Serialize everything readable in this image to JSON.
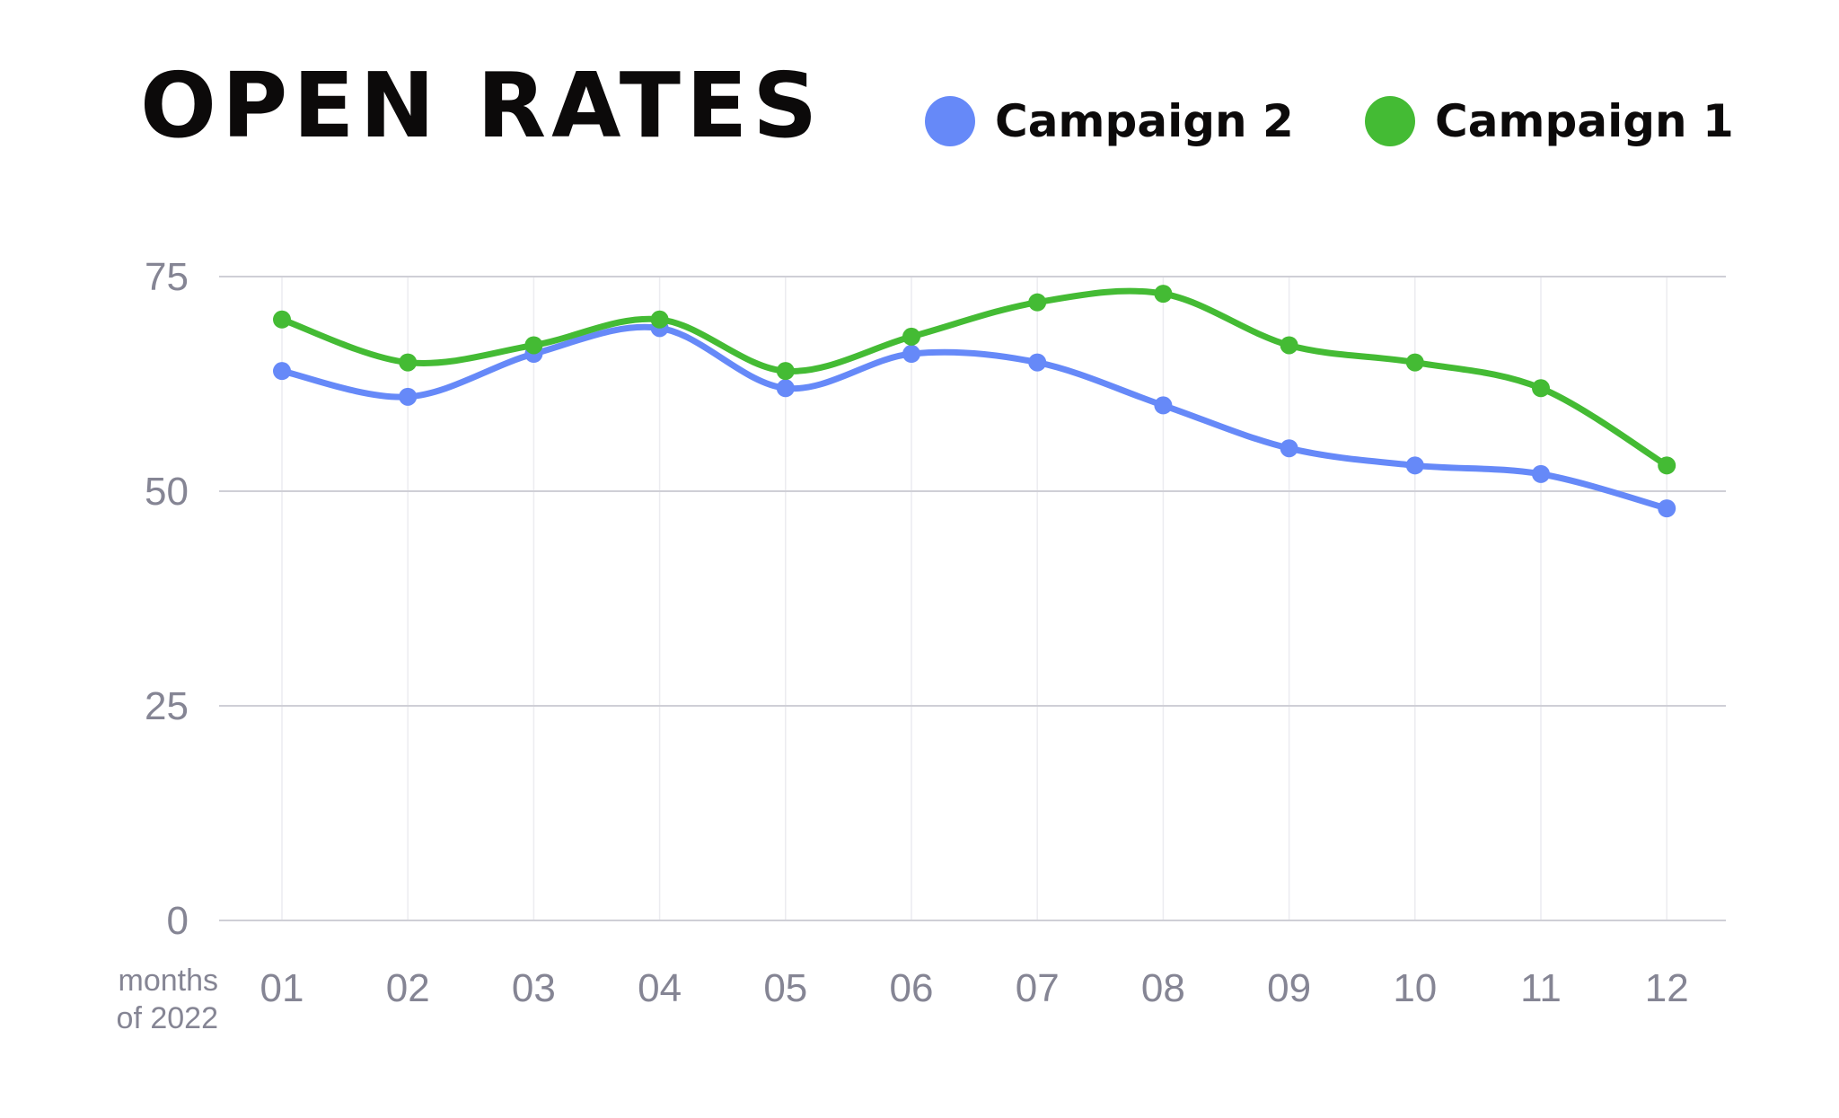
{
  "chart_data": {
    "type": "line",
    "title": "OPEN RATES",
    "xlabel": "months of 2022",
    "ylabel": "",
    "categories": [
      "01",
      "02",
      "03",
      "04",
      "05",
      "06",
      "07",
      "08",
      "09",
      "10",
      "11",
      "12"
    ],
    "ylim": [
      0,
      75
    ],
    "yticks": [
      "0",
      "25",
      "50",
      "75"
    ],
    "grid": true,
    "legend_position": "top-right",
    "series": [
      {
        "name": "Campaign 2",
        "color": "#6689f8",
        "values": [
          64,
          61,
          66,
          69,
          62,
          66,
          65,
          60,
          55,
          53,
          52,
          48
        ]
      },
      {
        "name": "Campaign 1",
        "color": "#44bb34",
        "values": [
          70,
          65,
          67,
          70,
          64,
          68,
          72,
          73,
          67,
          65,
          62,
          53
        ]
      }
    ]
  },
  "xlabel_lines": [
    "months",
    "of 2022"
  ]
}
